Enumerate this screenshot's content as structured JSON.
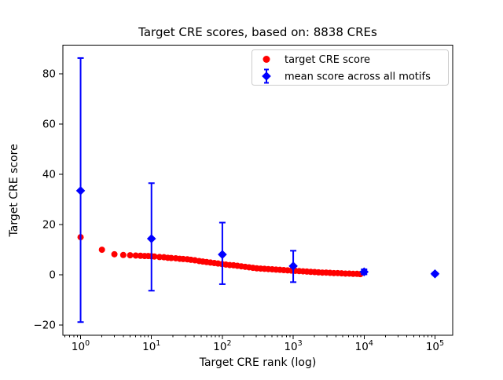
{
  "chart_data": {
    "type": "scatter",
    "title": "Target CRE scores, based on: 8838 CREs",
    "xlabel": "Target CRE rank (log)",
    "ylabel": "Target CRE score",
    "x_scale": "log",
    "xlim_log": [
      -0.25,
      5.25
    ],
    "ylim": [
      -24.1,
      91.4
    ],
    "x_tick_exponents": [
      0,
      1,
      2,
      3,
      4,
      5
    ],
    "x_tick_base": "10",
    "y_ticks": [
      -20,
      0,
      20,
      40,
      60,
      80
    ],
    "grid": false,
    "legend_position": "upper right",
    "colors": {
      "target": "#ff0000",
      "mean": "#0000ff"
    },
    "legend": [
      {
        "label": "target CRE score",
        "marker": "circle",
        "color": "#ff0000"
      },
      {
        "label": "mean score across all motifs",
        "marker": "diamond-errorbar",
        "color": "#0000ff"
      }
    ],
    "series": [
      {
        "name": "target CRE score",
        "type": "scatter-circles",
        "color": "#ff0000",
        "ranks": [
          1,
          2,
          3,
          4,
          5,
          6,
          7,
          8,
          9,
          10,
          11,
          13,
          15,
          17,
          19,
          22,
          25,
          28,
          32,
          36,
          41,
          47,
          53,
          60,
          68,
          77,
          87,
          99,
          112,
          127,
          144,
          163,
          185,
          210,
          238,
          270,
          306,
          347,
          393,
          445,
          505,
          572,
          649,
          735,
          833,
          944,
          1070,
          1213,
          1375,
          1558,
          1766,
          2002,
          2269,
          2572,
          2915,
          3304,
          3745,
          4245,
          4811,
          5453,
          6180,
          7005,
          7940,
          8838
        ],
        "scores": [
          15.0,
          10.0,
          8.2,
          7.9,
          7.8,
          7.7,
          7.6,
          7.5,
          7.5,
          7.4,
          7.3,
          7.1,
          7.0,
          6.8,
          6.7,
          6.6,
          6.4,
          6.3,
          6.2,
          6.0,
          5.8,
          5.5,
          5.3,
          5.1,
          4.9,
          4.7,
          4.5,
          4.3,
          4.1,
          3.9,
          3.8,
          3.6,
          3.4,
          3.2,
          3.0,
          2.8,
          2.6,
          2.5,
          2.4,
          2.3,
          2.2,
          2.1,
          2.0,
          1.9,
          1.8,
          1.7,
          1.6,
          1.5,
          1.4,
          1.3,
          1.2,
          1.1,
          1.0,
          0.9,
          0.9,
          0.8,
          0.7,
          0.7,
          0.6,
          0.5,
          0.5,
          0.4,
          0.4,
          0.3
        ]
      },
      {
        "name": "mean score across all motifs",
        "type": "errorbar-diamonds",
        "color": "#0000ff",
        "x": [
          1,
          10,
          100,
          1000,
          10000,
          100000
        ],
        "mean": [
          33.5,
          14.4,
          8.1,
          3.5,
          1.2,
          0.4
        ],
        "err_low": [
          -18.8,
          -6.3,
          -3.7,
          -2.9,
          0.2,
          -0.1
        ],
        "err_high": [
          86.3,
          36.5,
          20.8,
          9.6,
          2.2,
          0.9
        ]
      }
    ]
  }
}
